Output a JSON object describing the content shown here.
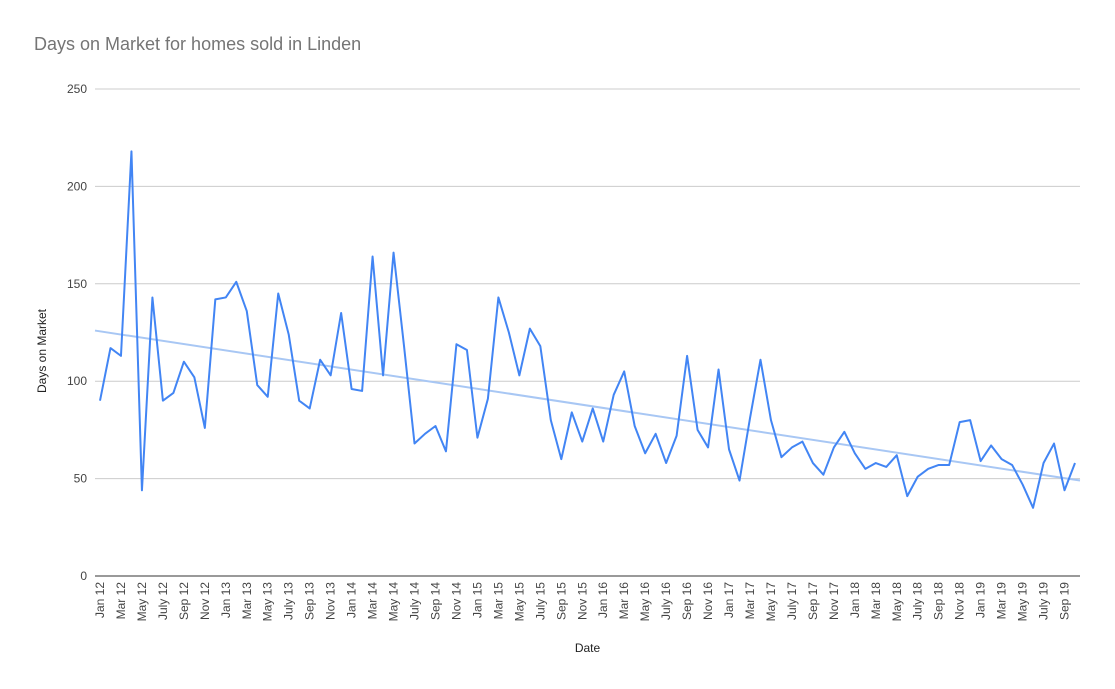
{
  "colors": {
    "series": "#4285f4",
    "trendline": "#a8c7f4",
    "grid": "#cccccc",
    "title": "#757575"
  },
  "chart_data": {
    "type": "line",
    "title": "Days on Market for homes sold in Linden",
    "xlabel": "Date",
    "ylabel": "Days on Market",
    "ylim": [
      0,
      250
    ],
    "yticks": [
      0,
      50,
      100,
      150,
      200,
      250
    ],
    "grid": true,
    "legend": "none",
    "trendline": {
      "type": "linear",
      "start": 126,
      "end": 49
    },
    "x_tick_labels": [
      "Jan 12",
      "Mar 12",
      "May 12",
      "July 12",
      "Sep 12",
      "Nov 12",
      "Jan 13",
      "Mar 13",
      "May 13",
      "July 13",
      "Sep 13",
      "Nov 13",
      "Jan 14",
      "Mar 14",
      "May 14",
      "July 14",
      "Sep 14",
      "Nov 14",
      "Jan 15",
      "Mar 15",
      "May 15",
      "July 15",
      "Sep 15",
      "Nov 15",
      "Jan 16",
      "Mar 16",
      "May 16",
      "July 16",
      "Sep 16",
      "Nov 16",
      "Jan 17",
      "Mar 17",
      "May 17",
      "July 17",
      "Sep 17",
      "Nov 17",
      "Jan 18",
      "Mar 18",
      "May 18",
      "July 18",
      "Sep 18",
      "Nov 18",
      "Jan 19",
      "Mar 19",
      "May 19",
      "July 19",
      "Sep 19"
    ],
    "series": [
      {
        "x": [
          "Jan 12",
          "Feb 12",
          "Mar 12",
          "Apr 12",
          "May 12",
          "Jun 12",
          "July 12",
          "Aug 12",
          "Sep 12",
          "Oct 12",
          "Nov 12",
          "Dec 12",
          "Jan 13",
          "Feb 13",
          "Mar 13",
          "Apr 13",
          "May 13",
          "Jun 13",
          "July 13",
          "Aug 13",
          "Sep 13",
          "Oct 13",
          "Nov 13",
          "Dec 13",
          "Jan 14",
          "Feb 14",
          "Mar 14",
          "Apr 14",
          "May 14",
          "Jun 14",
          "July 14",
          "Aug 14",
          "Sep 14",
          "Oct 14",
          "Nov 14",
          "Dec 14",
          "Jan 15",
          "Feb 15",
          "Mar 15",
          "Apr 15",
          "May 15",
          "Jun 15",
          "July 15",
          "Aug 15",
          "Sep 15",
          "Oct 15",
          "Nov 15",
          "Dec 15",
          "Jan 16",
          "Feb 16",
          "Mar 16",
          "Apr 16",
          "May 16",
          "Jun 16",
          "July 16",
          "Aug 16",
          "Sep 16",
          "Oct 16",
          "Nov 16",
          "Dec 16",
          "Jan 17",
          "Feb 17",
          "Mar 17",
          "Apr 17",
          "May 17",
          "Jun 17",
          "July 17",
          "Aug 17",
          "Sep 17",
          "Oct 17",
          "Nov 17",
          "Dec 17",
          "Jan 18",
          "Feb 18",
          "Mar 18",
          "Apr 18",
          "May 18",
          "Jun 18",
          "July 18",
          "Aug 18",
          "Sep 18",
          "Oct 18",
          "Nov 18",
          "Dec 18",
          "Jan 19",
          "Feb 19",
          "Mar 19",
          "Apr 19",
          "May 19",
          "Jun 19",
          "July 19",
          "Aug 19",
          "Sep 19",
          "Oct 19"
        ],
        "values": [
          90,
          117,
          113,
          218,
          44,
          143,
          90,
          94,
          110,
          102,
          76,
          142,
          143,
          151,
          136,
          98,
          92,
          145,
          124,
          90,
          86,
          111,
          103,
          135,
          96,
          95,
          164,
          103,
          166,
          118,
          68,
          73,
          77,
          64,
          119,
          116,
          71,
          91,
          143,
          125,
          103,
          127,
          118,
          80,
          60,
          84,
          69,
          86,
          69,
          93,
          105,
          77,
          63,
          73,
          58,
          72,
          113,
          75,
          66,
          106,
          65,
          49,
          81,
          111,
          80,
          61,
          66,
          69,
          58,
          52,
          66,
          74,
          63,
          55,
          58,
          56,
          62,
          41,
          51,
          55,
          57,
          57,
          79,
          80,
          59,
          67,
          60,
          57,
          47,
          35,
          58,
          68,
          44,
          58
        ]
      }
    ]
  }
}
